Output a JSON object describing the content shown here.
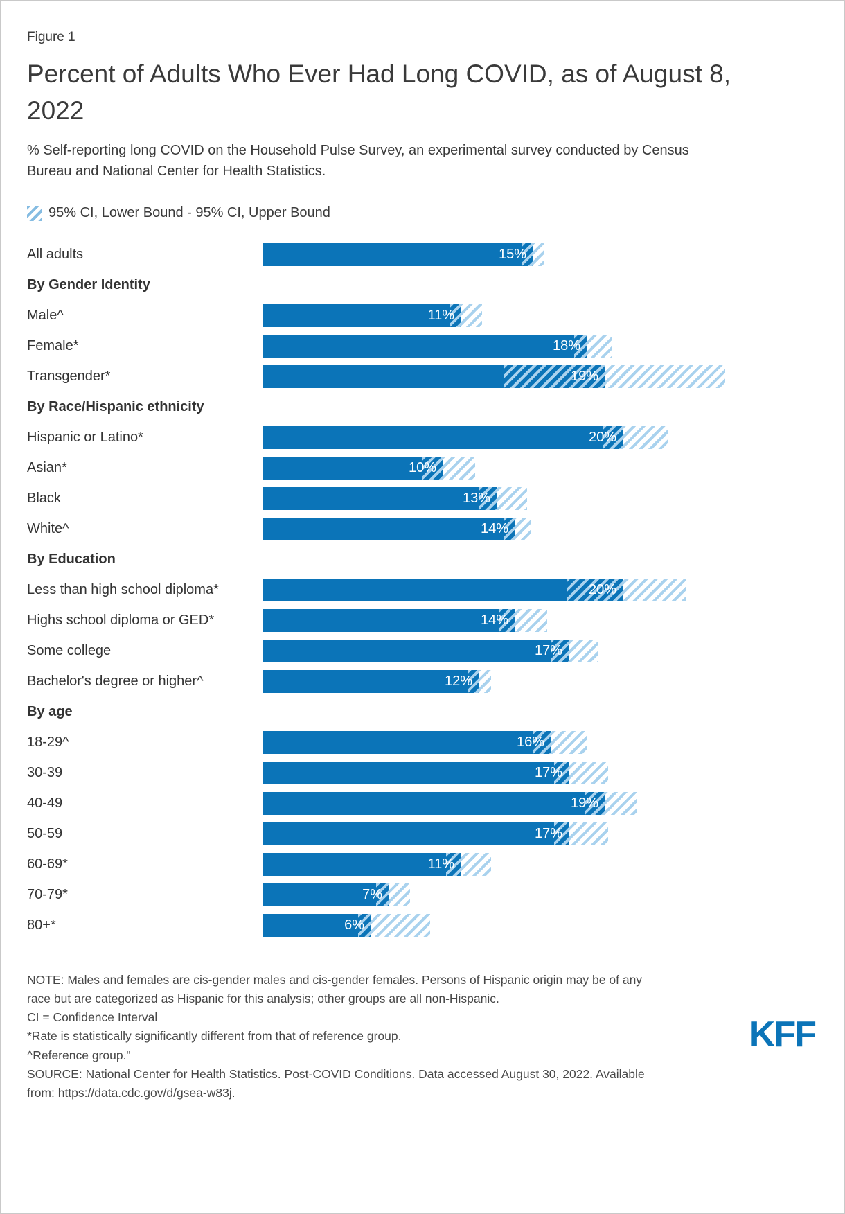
{
  "figure_label": "Figure 1",
  "title": "Percent of Adults Who Ever Had Long COVID, as of August 8, 2022",
  "subtitle": "% Self-reporting long COVID on the Household Pulse Survey, an experimental survey conducted by Census Bureau and National Center for Health Statistics.",
  "legend": {
    "label": "95% CI, Lower Bound - 95% CI, Upper Bound"
  },
  "colors": {
    "bar": "#0B74B8",
    "hatch": "#A9D2EE",
    "text": "#333333"
  },
  "chart_data": {
    "type": "bar",
    "orientation": "horizontal",
    "value_unit": "%",
    "xlim": [
      0,
      30
    ],
    "grid": false,
    "legend_position": "top-left",
    "groups": [
      {
        "header": "",
        "rows": [
          {
            "label": "All adults",
            "value": 15,
            "ci_lower": 14.4,
            "ci_upper": 15.6
          }
        ]
      },
      {
        "header": "By Gender Identity",
        "rows": [
          {
            "label": "Male^",
            "value": 11,
            "ci_lower": 10.4,
            "ci_upper": 12.2
          },
          {
            "label": "Female*",
            "value": 18,
            "ci_lower": 17.3,
            "ci_upper": 19.4
          },
          {
            "label": "Transgender*",
            "value": 19,
            "ci_lower": 13.4,
            "ci_upper": 25.7
          }
        ]
      },
      {
        "header": "By Race/Hispanic ethnicity",
        "rows": [
          {
            "label": "Hispanic or Latino*",
            "value": 20,
            "ci_lower": 18.9,
            "ci_upper": 22.5
          },
          {
            "label": "Asian*",
            "value": 10,
            "ci_lower": 8.9,
            "ci_upper": 11.8
          },
          {
            "label": "Black",
            "value": 13,
            "ci_lower": 12.0,
            "ci_upper": 14.7
          },
          {
            "label": "White^",
            "value": 14,
            "ci_lower": 13.4,
            "ci_upper": 14.9
          }
        ]
      },
      {
        "header": "By Education",
        "rows": [
          {
            "label": "Less than high school diploma*",
            "value": 20,
            "ci_lower": 16.9,
            "ci_upper": 23.5
          },
          {
            "label": "Highs school diploma or GED*",
            "value": 14,
            "ci_lower": 13.1,
            "ci_upper": 15.8
          },
          {
            "label": "Some college",
            "value": 17,
            "ci_lower": 16.0,
            "ci_upper": 18.6
          },
          {
            "label": "Bachelor's degree or higher^",
            "value": 12,
            "ci_lower": 11.4,
            "ci_upper": 12.7
          }
        ]
      },
      {
        "header": "By age",
        "rows": [
          {
            "label": "18-29^",
            "value": 16,
            "ci_lower": 15.0,
            "ci_upper": 18.0
          },
          {
            "label": "30-39",
            "value": 17,
            "ci_lower": 16.2,
            "ci_upper": 19.2
          },
          {
            "label": "40-49",
            "value": 19,
            "ci_lower": 17.9,
            "ci_upper": 20.8
          },
          {
            "label": "50-59",
            "value": 17,
            "ci_lower": 16.2,
            "ci_upper": 19.2
          },
          {
            "label": "60-69*",
            "value": 11,
            "ci_lower": 10.2,
            "ci_upper": 12.7
          },
          {
            "label": "70-79*",
            "value": 7,
            "ci_lower": 6.3,
            "ci_upper": 8.2
          },
          {
            "label": "80+*",
            "value": 6,
            "ci_lower": 5.3,
            "ci_upper": 9.3
          }
        ]
      }
    ]
  },
  "notes": "NOTE: Males and females are cis-gender males and cis-gender females. Persons of Hispanic origin may be of any race but are categorized as Hispanic for this analysis; other groups are all non-Hispanic.\nCI = Confidence Interval\n*Rate is statistically significantly different from that of reference group.\n^Reference group.\"",
  "source": "SOURCE: National Center for Health Statistics. Post-COVID Conditions. Data accessed August 30, 2022. Available from: https://data.cdc.gov/d/gsea-w83j.",
  "logo": "KFF"
}
